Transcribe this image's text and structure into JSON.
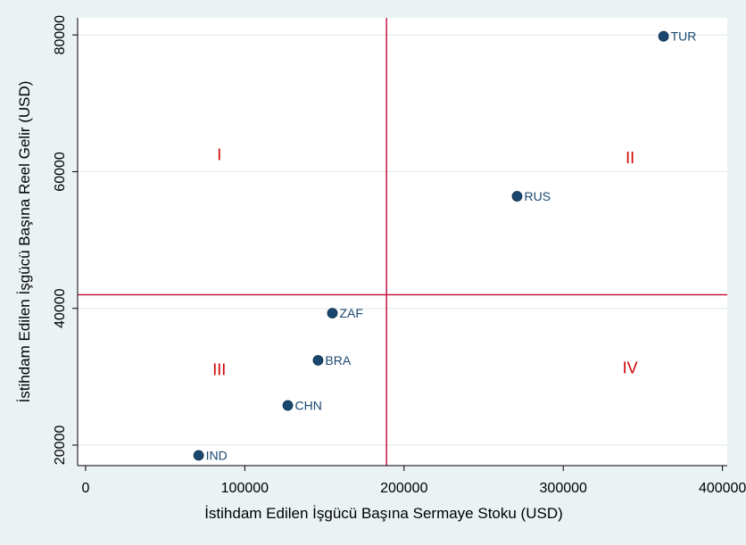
{
  "chart_data": {
    "type": "scatter",
    "title": "",
    "xlabel": "İstihdam Edilen İşgücü Başına Sermaye Stoku (USD)",
    "ylabel": "İstihdam Edilen İşgücü Başına Reel Gelir (USD)",
    "xlim": [
      -5000,
      403000
    ],
    "ylim": [
      17000,
      82500
    ],
    "xticks": [
      0,
      100000,
      200000,
      300000,
      400000
    ],
    "xtick_labels": [
      "0",
      "100000",
      "200000",
      "300000",
      "400000"
    ],
    "yticks": [
      20000,
      40000,
      60000,
      80000
    ],
    "ytick_labels": [
      "20000",
      "40000",
      "60000",
      "80000"
    ],
    "grid": true,
    "points": [
      {
        "label": "TUR",
        "x": 363000,
        "y": 79800
      },
      {
        "label": "RUS",
        "x": 271000,
        "y": 56400
      },
      {
        "label": "ZAF",
        "x": 155000,
        "y": 39300
      },
      {
        "label": "BRA",
        "x": 146000,
        "y": 32400
      },
      {
        "label": "CHN",
        "x": 127000,
        "y": 25800
      },
      {
        "label": "IND",
        "x": 71000,
        "y": 18500
      }
    ],
    "reference_lines": {
      "x": 189000,
      "y": 42000
    },
    "quadrants": [
      {
        "label": "I",
        "x": 84000,
        "y": 62500
      },
      {
        "label": "II",
        "x": 342000,
        "y": 62000
      },
      {
        "label": "III",
        "x": 84000,
        "y": 31000
      },
      {
        "label": "IV",
        "x": 342000,
        "y": 31300
      }
    ],
    "colors": {
      "background": "#eaf2f3",
      "plot_background": "#ffffff",
      "grid": "#e5ecee",
      "axis": "#000000",
      "marker": "#1a476f",
      "reference_line": "#c10534",
      "quadrant_label": "#d10000"
    }
  }
}
